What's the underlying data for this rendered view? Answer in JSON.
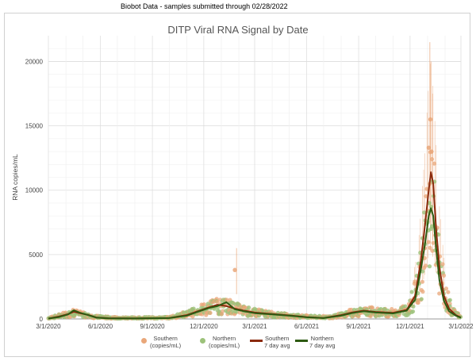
{
  "header": {
    "text": "Biobot Data - samples submitted through 02/28/2022"
  },
  "chart_data": {
    "type": "scatter",
    "title": "DITP Viral RNA Signal by Date",
    "xlabel": "",
    "ylabel": "RNA copies/mL",
    "xlim": [
      "2020-03-01",
      "2022-03-01"
    ],
    "ylim": [
      0,
      22000
    ],
    "x_ticks": [
      "3/1/2020",
      "6/1/2020",
      "9/1/2020",
      "12/1/2020",
      "3/1/2021",
      "6/1/2021",
      "9/1/2021",
      "12/1/2021",
      "3/1/2022"
    ],
    "y_ticks": [
      0,
      5000,
      10000,
      15000,
      20000
    ],
    "grid": true,
    "legend_position": "bottom",
    "series": [
      {
        "name": "Southern (copies/mL)",
        "kind": "scatter",
        "color": "#e9a77a"
      },
      {
        "name": "Northern (copies/mL)",
        "kind": "scatter",
        "color": "#9cc27a"
      },
      {
        "name": "Southern 7 day avg",
        "kind": "line",
        "color": "#8b2a0c",
        "points": [
          [
            "2020-03-01",
            40
          ],
          [
            "2020-03-20",
            200
          ],
          [
            "2020-04-05",
            380
          ],
          [
            "2020-04-15",
            560
          ],
          [
            "2020-04-25",
            450
          ],
          [
            "2020-05-10",
            320
          ],
          [
            "2020-05-25",
            120
          ],
          [
            "2020-06-15",
            60
          ],
          [
            "2020-08-01",
            50
          ],
          [
            "2020-10-01",
            80
          ],
          [
            "2020-11-01",
            300
          ],
          [
            "2020-11-20",
            600
          ],
          [
            "2020-12-10",
            900
          ],
          [
            "2020-12-25",
            1100
          ],
          [
            "2021-01-10",
            1000
          ],
          [
            "2021-01-25",
            800
          ],
          [
            "2021-02-10",
            650
          ],
          [
            "2021-03-01",
            500
          ],
          [
            "2021-04-01",
            380
          ],
          [
            "2021-05-01",
            280
          ],
          [
            "2021-06-01",
            150
          ],
          [
            "2021-07-01",
            80
          ],
          [
            "2021-08-01",
            300
          ],
          [
            "2021-08-20",
            500
          ],
          [
            "2021-09-10",
            650
          ],
          [
            "2021-10-01",
            550
          ],
          [
            "2021-11-01",
            480
          ],
          [
            "2021-11-25",
            700
          ],
          [
            "2021-12-10",
            1800
          ],
          [
            "2021-12-20",
            4500
          ],
          [
            "2021-12-28",
            7500
          ],
          [
            "2022-01-03",
            10000
          ],
          [
            "2022-01-07",
            11400
          ],
          [
            "2022-01-11",
            10500
          ],
          [
            "2022-01-16",
            7000
          ],
          [
            "2022-01-22",
            4000
          ],
          [
            "2022-01-30",
            1800
          ],
          [
            "2022-02-08",
            800
          ],
          [
            "2022-02-20",
            300
          ],
          [
            "2022-03-01",
            120
          ]
        ]
      },
      {
        "name": "Northern 7 day avg",
        "kind": "line",
        "color": "#2d5a12",
        "points": [
          [
            "2020-03-01",
            30
          ],
          [
            "2020-03-20",
            150
          ],
          [
            "2020-04-05",
            350
          ],
          [
            "2020-04-15",
            680
          ],
          [
            "2020-04-25",
            500
          ],
          [
            "2020-05-10",
            300
          ],
          [
            "2020-05-25",
            100
          ],
          [
            "2020-06-15",
            50
          ],
          [
            "2020-08-01",
            40
          ],
          [
            "2020-10-01",
            70
          ],
          [
            "2020-11-01",
            250
          ],
          [
            "2020-11-20",
            550
          ],
          [
            "2020-12-10",
            850
          ],
          [
            "2020-12-25",
            1000
          ],
          [
            "2021-01-10",
            1300
          ],
          [
            "2021-01-25",
            750
          ],
          [
            "2021-02-10",
            600
          ],
          [
            "2021-03-01",
            450
          ],
          [
            "2021-04-01",
            350
          ],
          [
            "2021-05-01",
            250
          ],
          [
            "2021-06-01",
            130
          ],
          [
            "2021-07-01",
            70
          ],
          [
            "2021-08-01",
            250
          ],
          [
            "2021-08-20",
            450
          ],
          [
            "2021-09-10",
            600
          ],
          [
            "2021-10-01",
            500
          ],
          [
            "2021-11-01",
            430
          ],
          [
            "2021-11-25",
            650
          ],
          [
            "2021-12-10",
            1500
          ],
          [
            "2021-12-20",
            3800
          ],
          [
            "2021-12-28",
            6000
          ],
          [
            "2022-01-03",
            8000
          ],
          [
            "2022-01-07",
            8600
          ],
          [
            "2022-01-11",
            8000
          ],
          [
            "2022-01-16",
            5500
          ],
          [
            "2022-01-22",
            3000
          ],
          [
            "2022-01-30",
            1400
          ],
          [
            "2022-02-08",
            600
          ],
          [
            "2022-02-20",
            250
          ],
          [
            "2022-03-01",
            100
          ]
        ]
      }
    ],
    "scatter_envelope": [
      [
        "2020-03-01",
        100
      ],
      [
        "2020-04-15",
        700
      ],
      [
        "2020-05-20",
        250
      ],
      [
        "2020-07-01",
        120
      ],
      [
        "2020-10-01",
        150
      ],
      [
        "2020-11-15",
        800
      ],
      [
        "2020-12-20",
        1500
      ],
      [
        "2021-01-15",
        1400
      ],
      [
        "2021-02-15",
        900
      ],
      [
        "2021-04-01",
        500
      ],
      [
        "2021-06-01",
        250
      ],
      [
        "2021-07-15",
        200
      ],
      [
        "2021-08-20",
        700
      ],
      [
        "2021-09-20",
        850
      ],
      [
        "2021-11-01",
        700
      ],
      [
        "2021-11-28",
        1200
      ],
      [
        "2021-12-15",
        3500
      ],
      [
        "2021-12-28",
        9000
      ],
      [
        "2022-01-05",
        13500
      ],
      [
        "2022-01-12",
        11500
      ],
      [
        "2022-01-20",
        6500
      ],
      [
        "2022-02-01",
        2500
      ],
      [
        "2022-02-15",
        900
      ],
      [
        "2022-03-01",
        200
      ]
    ],
    "outliers": [
      {
        "date": "2021-01-25",
        "value": 3800,
        "series": "Southern (copies/mL)"
      },
      {
        "date": "2022-01-03",
        "value": 13300,
        "series": "Southern (copies/mL)"
      },
      {
        "date": "2022-01-06",
        "value": 15500,
        "series": "Southern (copies/mL)"
      },
      {
        "date": "2022-01-08",
        "value": 13000,
        "series": "Southern (copies/mL)"
      },
      {
        "date": "2022-01-05",
        "value": 10500,
        "series": "Southern (copies/mL)"
      },
      {
        "date": "2022-01-04",
        "value": 9000,
        "series": "Northern (copies/mL)"
      },
      {
        "date": "2022-01-09",
        "value": 7200,
        "series": "Northern (copies/mL)"
      },
      {
        "date": "2021-12-27",
        "value": 5500,
        "series": "Southern (copies/mL)"
      },
      {
        "date": "2022-01-15",
        "value": 6500,
        "series": "Southern (copies/mL)"
      }
    ],
    "error_bar_peaks": [
      {
        "date": "2022-01-05",
        "high": 21500
      },
      {
        "date": "2022-01-07",
        "high": 20000
      },
      {
        "date": "2022-01-10",
        "high": 17500
      },
      {
        "date": "2021-01-28",
        "high": 5500
      }
    ]
  },
  "legend": [
    {
      "line1": "Southern",
      "line2": "(copies/mL)",
      "color": "#e9a77a",
      "kind": "dot"
    },
    {
      "line1": "Northern",
      "line2": "(copies/mL)",
      "color": "#9cc27a",
      "kind": "dot"
    },
    {
      "line1": "Southern",
      "line2": "7 day avg",
      "color": "#8b2a0c",
      "kind": "line"
    },
    {
      "line1": "Northern",
      "line2": "7 day avg",
      "color": "#2d5a12",
      "kind": "line"
    }
  ]
}
